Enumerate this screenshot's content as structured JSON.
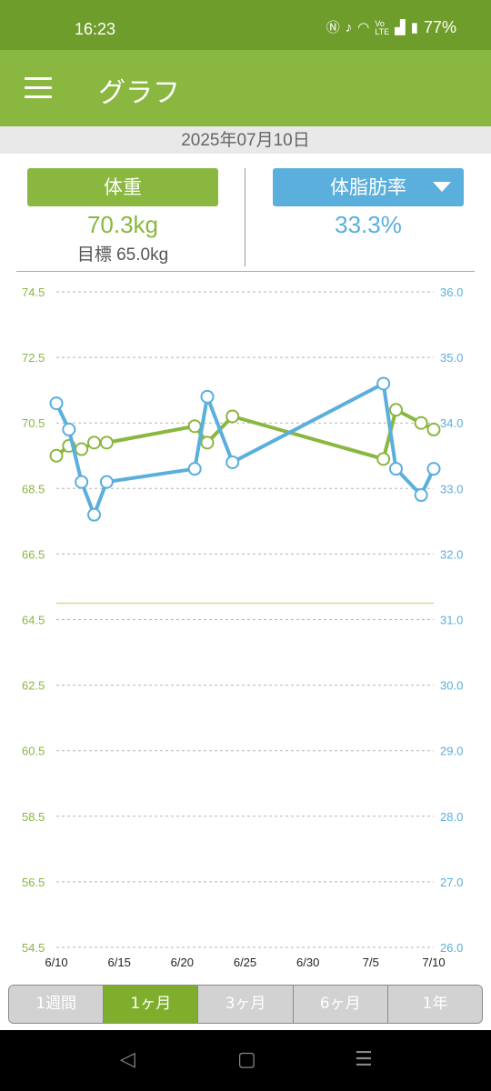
{
  "status_bar": {
    "time": "16:23",
    "battery": "77%",
    "icons": [
      "nfc-icon",
      "mute-icon",
      "wifi-icon",
      "volte-icon",
      "signal-icon",
      "battery-icon"
    ]
  },
  "app_bar": {
    "title": "グラフ"
  },
  "date": "2025年07月10日",
  "weight_panel": {
    "label": "体重",
    "value": "70.3kg",
    "goal": "目標 65.0kg"
  },
  "fat_panel": {
    "label": "体脂肪率",
    "value": "33.3%"
  },
  "colors": {
    "weight": "#8ab73f",
    "fat": "#5aafdd",
    "header": "#8ab73f",
    "status": "#6f9d2b"
  },
  "range_tabs": [
    {
      "label": "1週間",
      "selected": false
    },
    {
      "label": "1ヶ月",
      "selected": true
    },
    {
      "label": "3ヶ月",
      "selected": false
    },
    {
      "label": "6ヶ月",
      "selected": false
    },
    {
      "label": "1年",
      "selected": false
    }
  ],
  "chart_data": {
    "type": "line",
    "left_axis": {
      "ticks": [
        "74.5",
        "72.5",
        "70.5",
        "68.5",
        "66.5",
        "64.5",
        "62.5",
        "60.5",
        "58.5",
        "56.5",
        "54.5"
      ],
      "ylim": [
        54.5,
        74.5
      ]
    },
    "right_axis": {
      "ticks": [
        "36.0",
        "35.0",
        "34.0",
        "33.0",
        "32.0",
        "31.0",
        "30.0",
        "29.0",
        "28.0",
        "27.0",
        "26.0"
      ],
      "ylim": [
        26.0,
        36.0
      ]
    },
    "x_ticks": [
      "6/10",
      "6/15",
      "6/20",
      "6/25",
      "6/30",
      "7/5",
      "7/10"
    ],
    "x_range": [
      "6/10",
      "7/10"
    ],
    "goal_weight": 65.0,
    "series": [
      {
        "axis": "left",
        "color": "#8ab73f",
        "points": [
          {
            "x": "6/10",
            "y": 69.5
          },
          {
            "x": "6/11",
            "y": 69.8
          },
          {
            "x": "6/12",
            "y": 69.7
          },
          {
            "x": "6/13",
            "y": 69.9
          },
          {
            "x": "6/14",
            "y": 69.9
          },
          {
            "x": "6/21",
            "y": 70.4
          },
          {
            "x": "6/22",
            "y": 69.9
          },
          {
            "x": "6/24",
            "y": 70.7
          },
          {
            "x": "7/6",
            "y": 69.4
          },
          {
            "x": "7/7",
            "y": 70.9
          },
          {
            "x": "7/9",
            "y": 70.5
          },
          {
            "x": "7/10",
            "y": 70.3
          }
        ]
      },
      {
        "axis": "right",
        "color": "#5aafdd",
        "points": [
          {
            "x": "6/10",
            "y": 34.3
          },
          {
            "x": "6/11",
            "y": 33.9
          },
          {
            "x": "6/12",
            "y": 33.1
          },
          {
            "x": "6/13",
            "y": 32.6
          },
          {
            "x": "6/14",
            "y": 33.1
          },
          {
            "x": "6/21",
            "y": 33.3
          },
          {
            "x": "6/22",
            "y": 34.4
          },
          {
            "x": "6/24",
            "y": 33.4
          },
          {
            "x": "7/6",
            "y": 34.6
          },
          {
            "x": "7/7",
            "y": 33.3
          },
          {
            "x": "7/9",
            "y": 32.9
          },
          {
            "x": "7/10",
            "y": 33.3
          }
        ]
      }
    ]
  }
}
